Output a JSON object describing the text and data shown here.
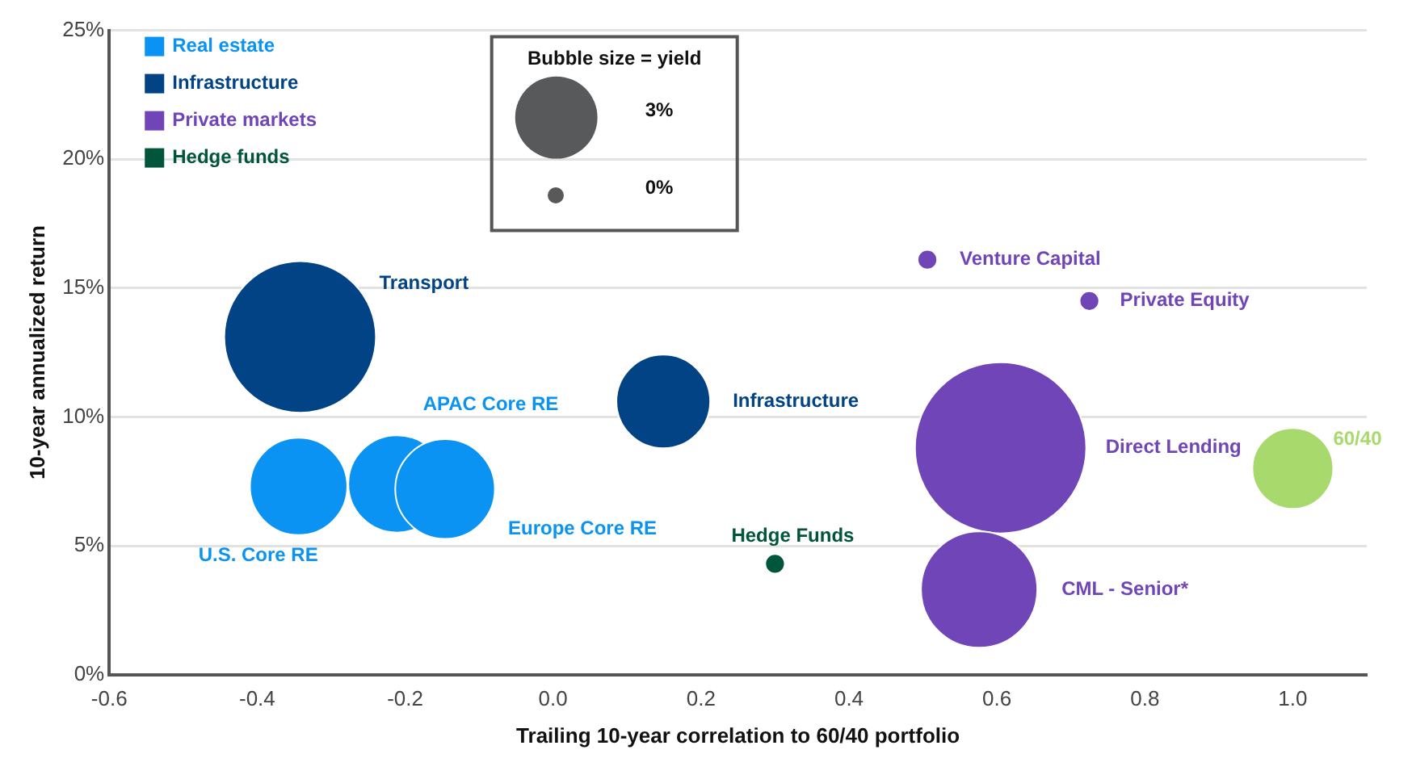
{
  "chart_data": {
    "type": "bubble",
    "xlabel": "Trailing 10-year correlation to 60/40 portfolio",
    "ylabel": "10-year annualized return",
    "legend_title": "Bubble size = yield",
    "size_legend": [
      {
        "value": 3,
        "label": "3%"
      }
    ],
    "series": [
      {
        "name": "Real estate",
        "color": "#0a93f2",
        "x": [
          -0.344,
          -0.211,
          -0.146
        ],
        "values": [
          7.3,
          7.4,
          7.2
        ],
        "sizes": [
          4.2,
          4.2,
          4.4
        ]
      },
      {
        "name": "Infrastructure",
        "color": "#024386",
        "x": [
          -0.342,
          0.149
        ],
        "values": [
          13.1,
          10.6
        ],
        "sizes": [
          10.2,
          3.9
        ]
      },
      {
        "name": "Private markets",
        "color": "#7045b8",
        "x": [
          0.506,
          0.725,
          0.605,
          0.576
        ],
        "values": [
          16.1,
          14.5,
          8.8,
          3.3
        ],
        "sizes": [
          0.17,
          0.17,
          13.0,
          6.0
        ]
      },
      {
        "name": "Hedge funds",
        "color": "#00553a",
        "x": [
          0.3
        ],
        "values": [
          4.3
        ],
        "sizes": [
          0.17
        ]
      },
      {
        "color": "#a8d96c",
        "x": [
          1.0
        ],
        "values": [
          8.0
        ],
        "sizes": [
          2.9
        ]
      }
    ],
    "annotations": [
      "U.S. Core RE",
      "APAC Core RE",
      "Europe Core RE",
      "Transport",
      "Infrastructure",
      "Venture Capital",
      "Private Equity",
      "Direct Lending",
      "CML - Senior*",
      "Hedge Funds",
      "60/40",
      "0%"
    ],
    "xlim": [
      -0.6,
      1.1
    ],
    "xticks": [
      {
        "value": -0.6,
        "label": "-0.6"
      },
      {
        "value": -0.4,
        "label": "-0.4"
      },
      {
        "value": -0.2,
        "label": "-0.2"
      },
      {
        "value": 0,
        "label": "0.0"
      },
      {
        "value": 0.2,
        "label": "0.2"
      },
      {
        "value": 0.4,
        "label": "0.4"
      },
      {
        "value": 0.6,
        "label": "0.6"
      },
      {
        "value": 0.8,
        "label": "0.8"
      },
      {
        "value": 1.0,
        "label": "1.0"
      }
    ],
    "ylim": [
      0,
      25
    ],
    "yticks": [
      {
        "value": 0,
        "label": "0%"
      },
      {
        "value": 5,
        "label": "5%"
      },
      {
        "value": 10,
        "label": "10%"
      },
      {
        "value": 15,
        "label": "15%"
      },
      {
        "value": 20,
        "label": "20%"
      },
      {
        "value": 25,
        "label": "25%"
      }
    ],
    "grid": "y",
    "legend": "top left"
  }
}
